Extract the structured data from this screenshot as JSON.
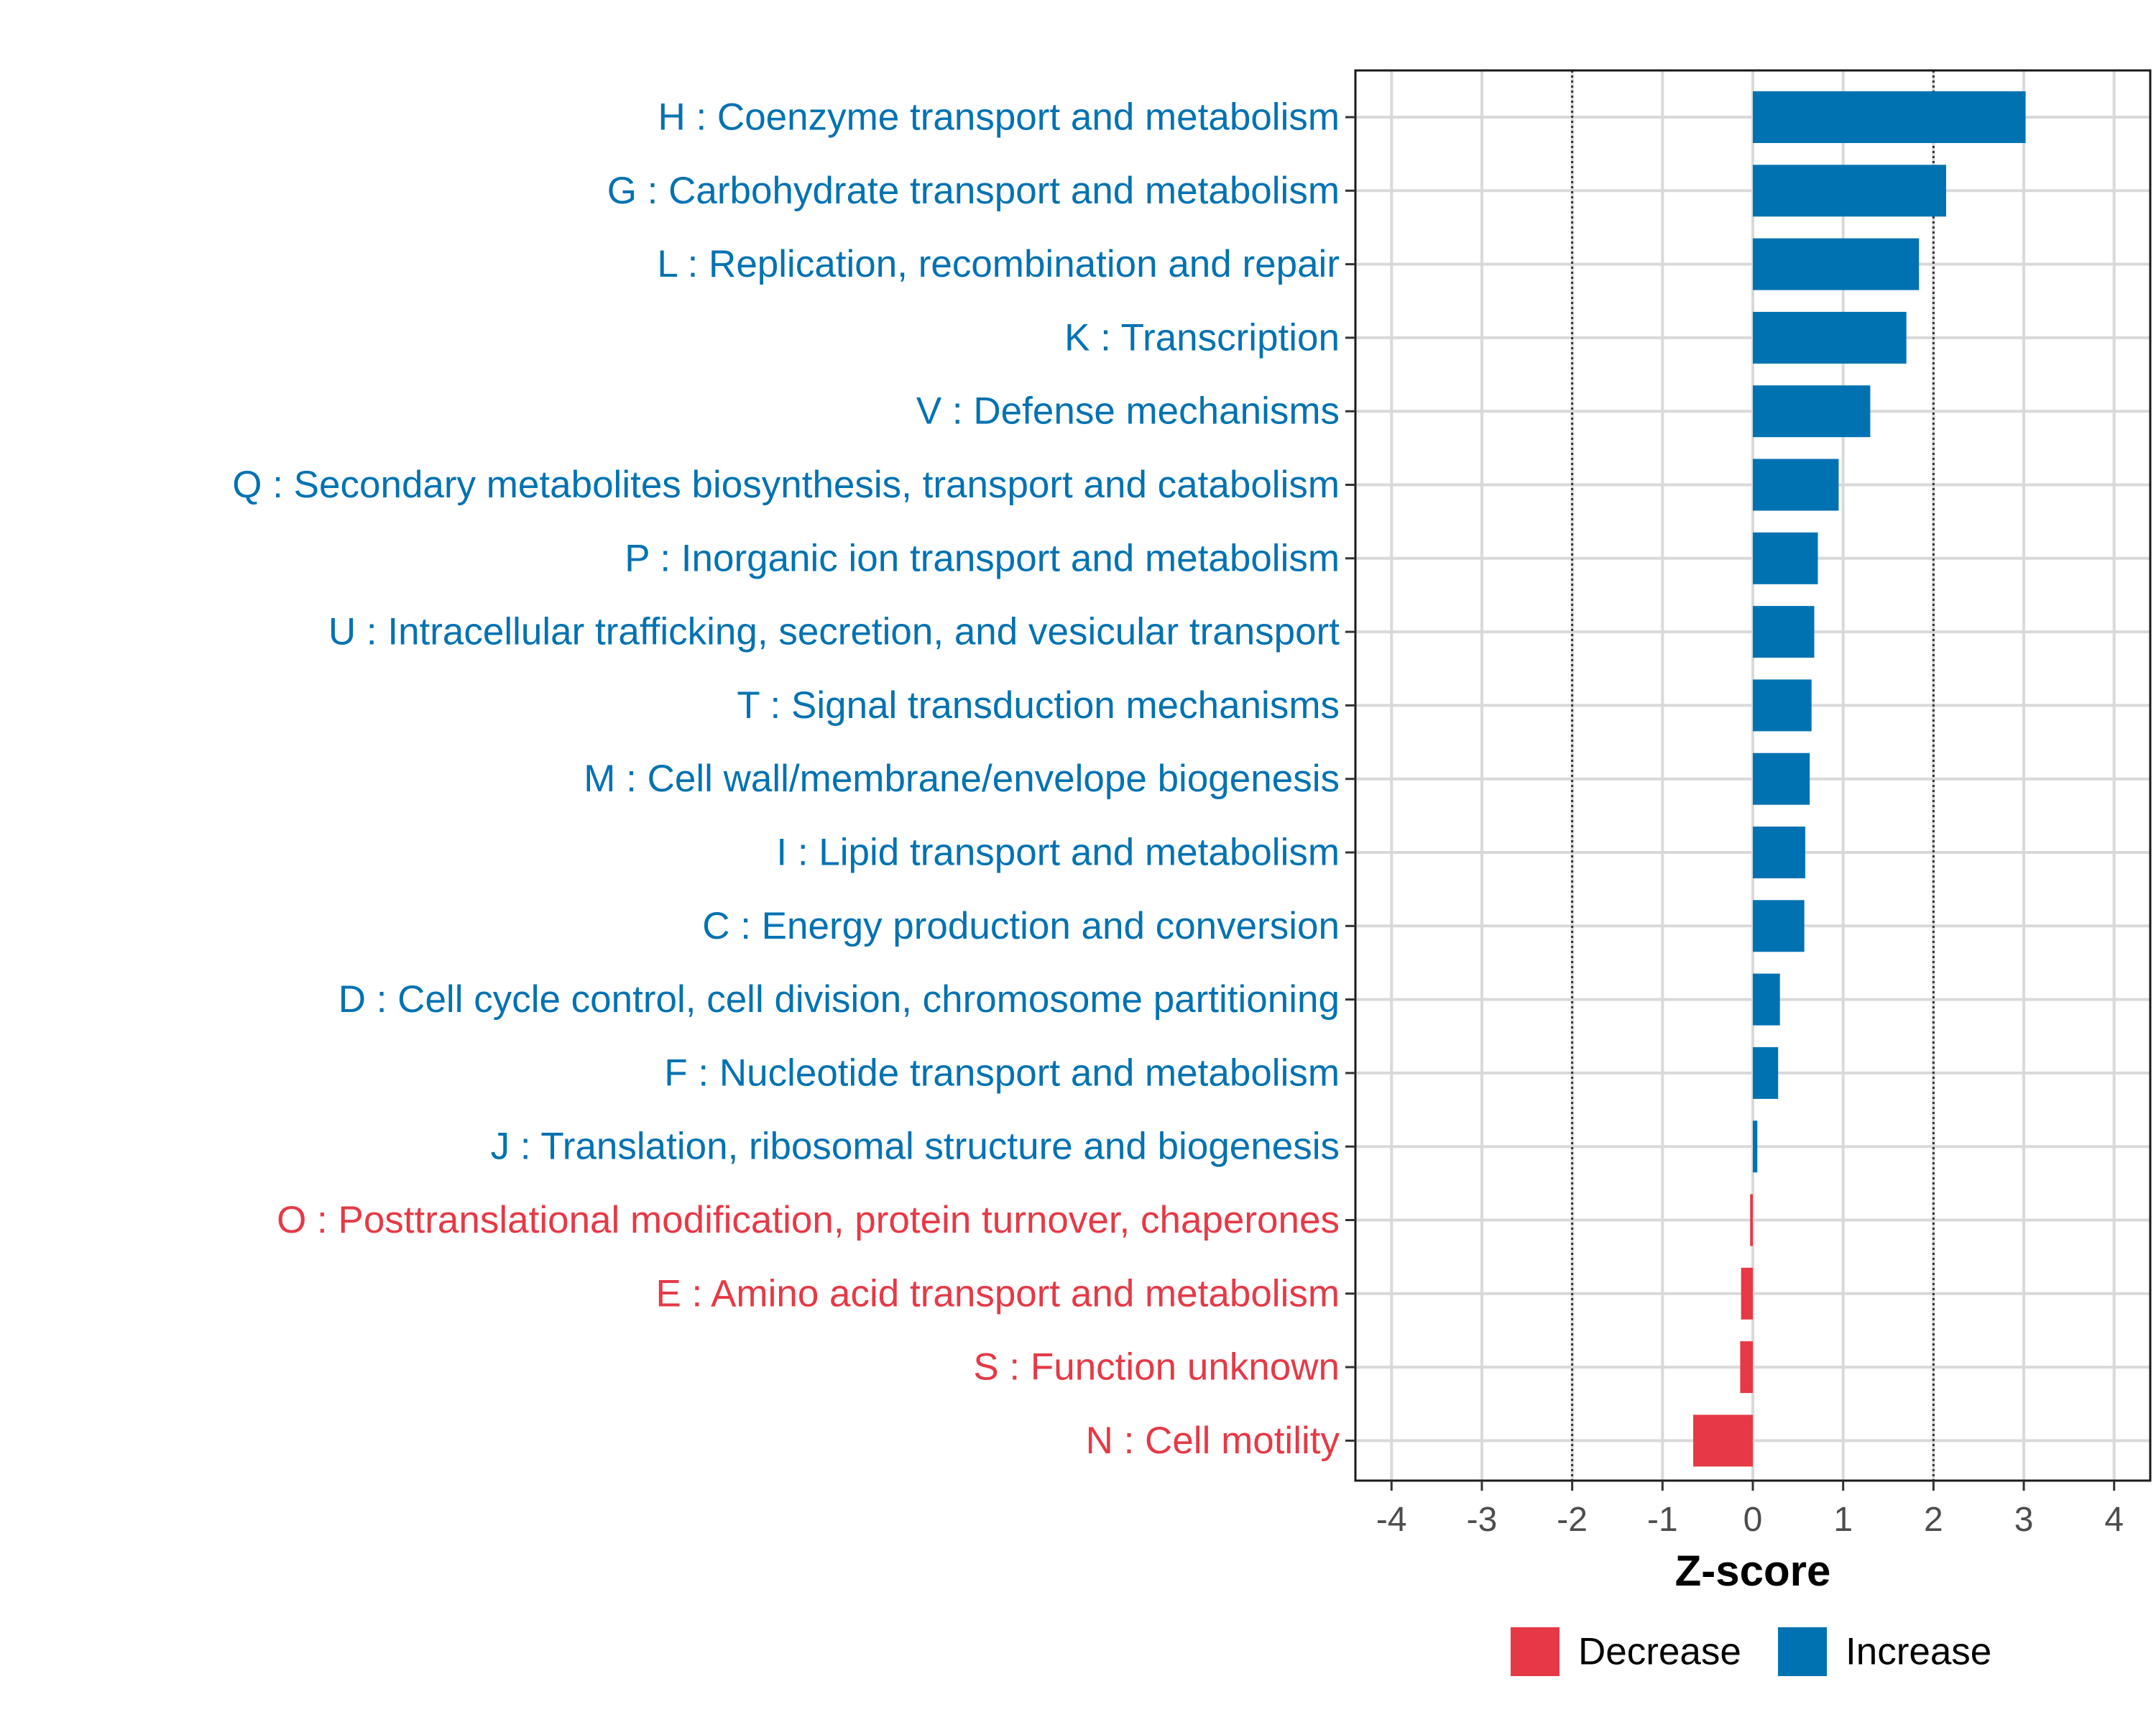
{
  "chart_data": {
    "type": "bar",
    "orientation": "horizontal",
    "title": "",
    "xlabel": "Z-score",
    "ylabel": "",
    "xlim": [
      -4.4,
      4.4
    ],
    "x_ticks": [
      -4,
      -3,
      -2,
      -1,
      0,
      1,
      2,
      3,
      4
    ],
    "x_tick_labels": [
      "-4",
      "-3",
      "-2",
      "-1",
      "0",
      "1",
      "2",
      "3",
      "4"
    ],
    "reference_lines": [
      -2,
      2
    ],
    "grid": true,
    "legend_position": "bottom",
    "colors": {
      "Decrease": "#e63946",
      "Increase": "#0072b2"
    },
    "legend": [
      {
        "name": "Decrease",
        "color": "#e63946"
      },
      {
        "name": "Increase",
        "color": "#0072b2"
      }
    ],
    "categories": [
      "H : Coenzyme transport and metabolism",
      "G : Carbohydrate transport and metabolism",
      "L : Replication, recombination and repair",
      "K : Transcription",
      "V : Defense mechanisms",
      "Q : Secondary metabolites biosynthesis, transport and catabolism",
      "P : Inorganic ion transport and metabolism",
      "U : Intracellular trafficking, secretion, and vesicular transport",
      "T : Signal transduction mechanisms",
      "M : Cell wall/membrane/envelope biogenesis",
      "I : Lipid transport and metabolism",
      "C : Energy production and conversion",
      "D : Cell cycle control, cell division, chromosome partitioning",
      "F : Nucleotide transport and metabolism",
      "J : Translation, ribosomal structure and biogenesis",
      "O : Posttranslational modification, protein turnover, chaperones",
      "E : Amino acid transport and metabolism",
      "S : Function unknown",
      "N : Cell motility"
    ],
    "values": [
      3.02,
      2.14,
      1.84,
      1.7,
      1.3,
      0.95,
      0.72,
      0.68,
      0.65,
      0.63,
      0.58,
      0.57,
      0.3,
      0.28,
      0.05,
      -0.03,
      -0.13,
      -0.14,
      -0.66
    ],
    "groups": [
      "Increase",
      "Increase",
      "Increase",
      "Increase",
      "Increase",
      "Increase",
      "Increase",
      "Increase",
      "Increase",
      "Increase",
      "Increase",
      "Increase",
      "Increase",
      "Increase",
      "Increase",
      "Decrease",
      "Decrease",
      "Decrease",
      "Decrease"
    ]
  }
}
